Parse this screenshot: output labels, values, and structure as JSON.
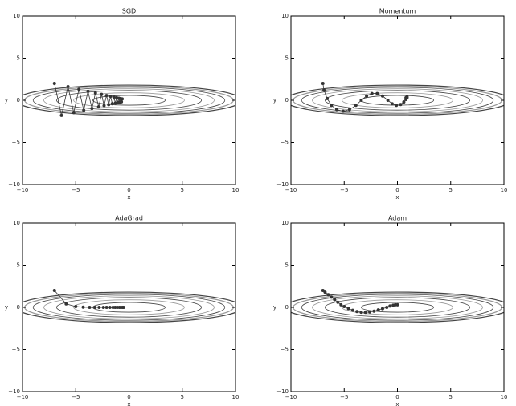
{
  "chart_data": [
    {
      "type": "line",
      "title": "SGD",
      "x_label": "x",
      "y_label": "y",
      "color": "#333333",
      "x": [
        -7,
        -6.34,
        -5.73,
        -5.19,
        -4.7,
        -4.25,
        -3.85,
        -3.48,
        -3.15,
        -2.85,
        -2.58,
        -2.34,
        -2.11,
        -1.91,
        -1.73,
        -1.57,
        -1.42,
        -1.28,
        -1.16,
        -1.05,
        -0.95,
        -0.86,
        -0.78,
        -0.71,
        -0.64
      ],
      "values": [
        2,
        -1.8,
        1.62,
        -1.46,
        1.31,
        -1.18,
        1.06,
        -0.96,
        0.86,
        -0.77,
        0.7,
        -0.63,
        0.56,
        -0.51,
        0.46,
        -0.41,
        0.37,
        -0.33,
        0.3,
        -0.27,
        0.24,
        -0.22,
        0.19,
        -0.18,
        0.16
      ],
      "xlim": [
        -10,
        10
      ],
      "ylim": [
        -10,
        10
      ],
      "xticks": [
        {
          "value": -10,
          "label": "−10"
        },
        {
          "value": -5,
          "label": "−5"
        },
        0,
        5,
        10
      ],
      "yticks": [
        {
          "value": -10,
          "label": "−10"
        },
        {
          "value": -5,
          "label": "−5"
        },
        0,
        5,
        10
      ]
    },
    {
      "type": "line",
      "title": "Momentum",
      "x_label": "x",
      "y_label": "y",
      "color": "#333333",
      "x": [
        -7,
        -6.9,
        -6.6,
        -6.2,
        -5.7,
        -5.1,
        -4.5,
        -3.9,
        -3.4,
        -2.9,
        -2.4,
        -1.9,
        -1.4,
        -0.9,
        -0.5,
        -0.1,
        0.3,
        0.6,
        0.8,
        0.9,
        0.9,
        0.8
      ],
      "values": [
        2,
        1.2,
        0.2,
        -0.6,
        -1.1,
        -1.3,
        -1.1,
        -0.6,
        0.0,
        0.5,
        0.8,
        0.8,
        0.5,
        0.0,
        -0.4,
        -0.6,
        -0.5,
        -0.2,
        0.1,
        0.3,
        0.4,
        0.3
      ],
      "xlim": [
        -10,
        10
      ],
      "ylim": [
        -10,
        10
      ],
      "xticks": [
        {
          "value": -10,
          "label": "−10"
        },
        {
          "value": -5,
          "label": "−5"
        },
        0,
        5,
        10
      ],
      "yticks": [
        {
          "value": -10,
          "label": "−10"
        },
        {
          "value": -5,
          "label": "−5"
        },
        0,
        5,
        10
      ]
    },
    {
      "type": "line",
      "title": "AdaGrad",
      "x_label": "x",
      "y_label": "y",
      "color": "#333333",
      "x": [
        -7,
        -5.9,
        -5.0,
        -4.3,
        -3.7,
        -3.2,
        -2.8,
        -2.4,
        -2.1,
        -1.8,
        -1.5,
        -1.3,
        -1.1,
        -0.9,
        -0.75,
        -0.6,
        -0.5
      ],
      "values": [
        2,
        0.4,
        0.1,
        0.02,
        0,
        0,
        0,
        0,
        0,
        0,
        0,
        0,
        0,
        0,
        0,
        0,
        0
      ],
      "xlim": [
        -10,
        10
      ],
      "ylim": [
        -10,
        10
      ],
      "xticks": [
        {
          "value": -10,
          "label": "−10"
        },
        {
          "value": -5,
          "label": "−5"
        },
        0,
        5,
        10
      ],
      "yticks": [
        {
          "value": -10,
          "label": "−10"
        },
        {
          "value": -5,
          "label": "−5"
        },
        0,
        5,
        10
      ]
    },
    {
      "type": "line",
      "title": "Adam",
      "x_label": "x",
      "y_label": "y",
      "color": "#333333",
      "x": [
        -7,
        -6.8,
        -6.5,
        -6.2,
        -5.9,
        -5.6,
        -5.3,
        -5.0,
        -4.6,
        -4.2,
        -3.8,
        -3.4,
        -3.0,
        -2.6,
        -2.2,
        -1.8,
        -1.4,
        -1.0,
        -0.7,
        -0.4,
        -0.2,
        0
      ],
      "values": [
        2,
        1.8,
        1.5,
        1.2,
        0.9,
        0.6,
        0.3,
        0.1,
        -0.15,
        -0.35,
        -0.5,
        -0.58,
        -0.6,
        -0.55,
        -0.45,
        -0.3,
        -0.15,
        0.0,
        0.15,
        0.25,
        0.3,
        0.3
      ],
      "xlim": [
        -10,
        10
      ],
      "ylim": [
        -10,
        10
      ],
      "xticks": [
        {
          "value": -10,
          "label": "−10"
        },
        {
          "value": -5,
          "label": "−5"
        },
        0,
        5,
        10
      ],
      "yticks": [
        {
          "value": -10,
          "label": "−10"
        },
        {
          "value": -5,
          "label": "−5"
        },
        0,
        5,
        10
      ]
    }
  ]
}
